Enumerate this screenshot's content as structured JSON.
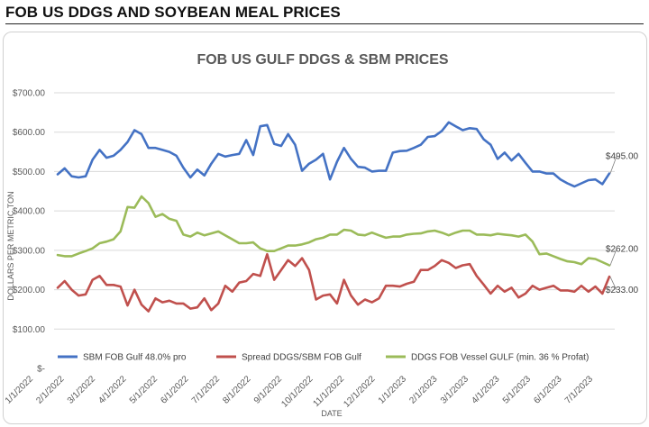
{
  "page": {
    "heading": "FOB US DDGS AND SOYBEAN MEAL PRICES"
  },
  "chart_data": {
    "type": "line",
    "title": "FOB US GULF DDGS & SBM PRICES",
    "xlabel": "DATE",
    "ylabel": "DOLLARS PER METRIC TON",
    "ylim": [
      0,
      700
    ],
    "yticks": [
      {
        "value": 0,
        "label": "$-"
      },
      {
        "value": 100,
        "label": "$100.00"
      },
      {
        "value": 200,
        "label": "$200.00"
      },
      {
        "value": 300,
        "label": "$300.00"
      },
      {
        "value": 400,
        "label": "$400.00"
      },
      {
        "value": 500,
        "label": "$500.00"
      },
      {
        "value": 600,
        "label": "$600.00"
      },
      {
        "value": 700,
        "label": "$700.00"
      }
    ],
    "xticks": [
      "1/1/2022",
      "2/1/2022",
      "3/1/2022",
      "4/1/2022",
      "5/1/2022",
      "6/1/2022",
      "7/1/2022",
      "8/1/2022",
      "9/1/2022",
      "10/1/2022",
      "11/1/2022",
      "12/1/2022",
      "1/1/2023",
      "2/1/2023",
      "3/1/2023",
      "4/1/2023",
      "5/1/2023",
      "6/1/2023",
      "7/1/2023"
    ],
    "grid": true,
    "legend_position": "bottom",
    "series": [
      {
        "name": "SBM FOB Gulf 48.0% pro",
        "color": "#4472C4",
        "end_label": "$495.00",
        "values": [
          493,
          508,
          488,
          485,
          488,
          530,
          555,
          535,
          540,
          555,
          575,
          605,
          595,
          560,
          560,
          555,
          550,
          540,
          510,
          485,
          505,
          490,
          520,
          545,
          538,
          542,
          545,
          580,
          542,
          615,
          618,
          570,
          565,
          595,
          568,
          502,
          520,
          530,
          545,
          480,
          525,
          560,
          532,
          512,
          510,
          500,
          502,
          502,
          548,
          552,
          553,
          560,
          568,
          588,
          590,
          603,
          625,
          615,
          605,
          610,
          608,
          582,
          568,
          532,
          548,
          528,
          545,
          522,
          500,
          500,
          495,
          495,
          480,
          470,
          462,
          470,
          478,
          480,
          468,
          495
        ]
      },
      {
        "name": "Spread DDGS/SBM FOB Gulf",
        "color": "#C0504D",
        "end_label": "$233.00",
        "values": [
          205,
          222,
          200,
          185,
          188,
          225,
          235,
          212,
          212,
          208,
          160,
          200,
          162,
          145,
          178,
          168,
          172,
          165,
          165,
          152,
          155,
          178,
          148,
          165,
          210,
          195,
          218,
          222,
          240,
          235,
          290,
          225,
          250,
          275,
          260,
          280,
          250,
          175,
          185,
          188,
          165,
          225,
          185,
          162,
          175,
          168,
          178,
          210,
          210,
          208,
          215,
          220,
          250,
          250,
          260,
          275,
          268,
          255,
          262,
          265,
          235,
          213,
          190,
          210,
          195,
          205,
          180,
          190,
          210,
          200,
          205,
          210,
          198,
          198,
          195,
          210,
          195,
          208,
          190,
          233
        ]
      },
      {
        "name": "DDGS FOB Vessel GULF  (min. 36 % Profat)",
        "color": "#9BBB59",
        "end_label": "$262.00",
        "values": [
          288,
          285,
          285,
          292,
          298,
          305,
          318,
          322,
          328,
          348,
          410,
          408,
          437,
          420,
          385,
          392,
          380,
          375,
          340,
          335,
          345,
          338,
          343,
          348,
          338,
          328,
          318,
          318,
          320,
          305,
          298,
          298,
          305,
          312,
          312,
          315,
          320,
          328,
          332,
          340,
          340,
          352,
          350,
          340,
          338,
          345,
          338,
          332,
          335,
          335,
          340,
          342,
          343,
          348,
          350,
          345,
          338,
          345,
          350,
          350,
          340,
          340,
          338,
          342,
          340,
          338,
          335,
          340,
          322,
          290,
          292,
          285,
          278,
          272,
          270,
          265,
          280,
          278,
          270,
          262
        ]
      }
    ]
  }
}
